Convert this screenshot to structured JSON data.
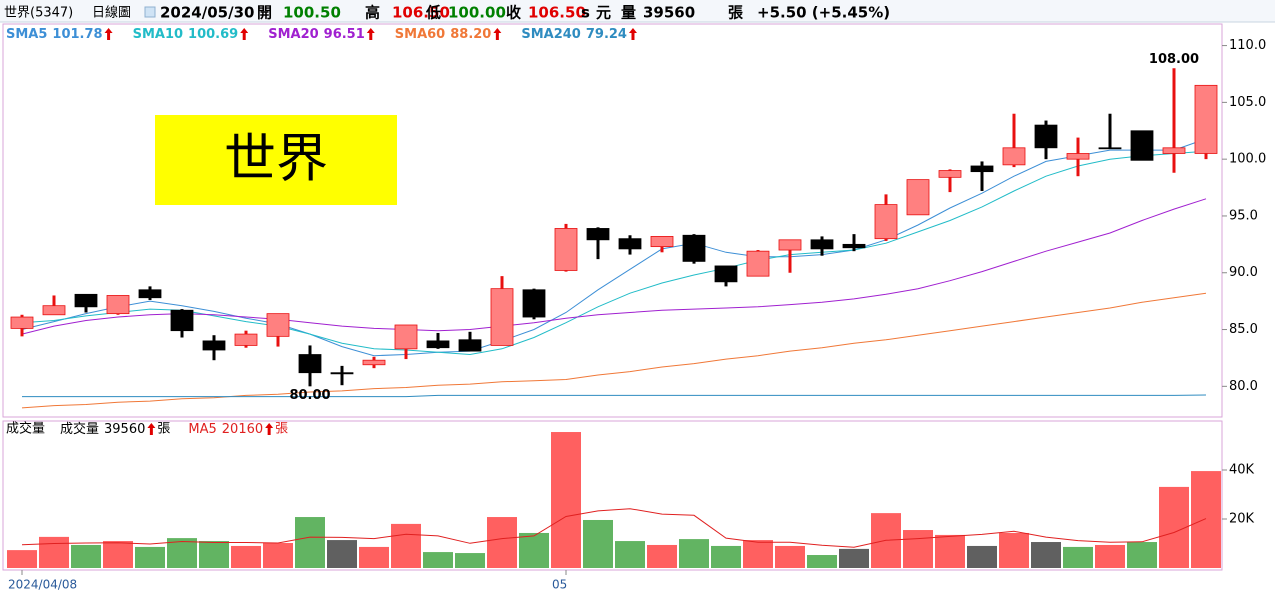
{
  "header": {
    "name": "世界(5347)",
    "view": "日線圖",
    "date": "2024/05/30",
    "open_label": "開",
    "open": "100.50",
    "high_label": "高",
    "high": "106.50",
    "low_label": "低",
    "low": "100.00",
    "close_label": "收",
    "close": "106.50",
    "s": "s",
    "currency": "元",
    "volume_label": "量",
    "volume": "39560",
    "volume_unit": "張",
    "change": "+5.50 (+5.45%)"
  },
  "chart_data": [
    {
      "type": "candlestick",
      "annotation": "世界",
      "open": [
        85.1,
        86.3,
        88.1,
        86.4,
        88.5,
        86.7,
        84.0,
        83.6,
        84.4,
        82.8,
        81.2,
        81.9,
        83.3,
        84.0,
        84.1,
        83.6,
        88.5,
        90.2,
        93.9,
        93.0,
        92.3,
        93.3,
        90.6,
        89.7,
        92.0,
        92.9,
        92.5,
        93.0,
        95.1,
        98.4,
        99.4,
        99.5,
        103.0,
        100.0,
        101.0,
        102.5,
        100.5,
        100.5
      ],
      "high": [
        86.3,
        88.0,
        88.1,
        88.0,
        88.8,
        86.8,
        84.5,
        84.9,
        86.4,
        83.6,
        81.8,
        82.6,
        85.4,
        84.7,
        84.8,
        89.7,
        88.6,
        94.3,
        94.0,
        93.3,
        93.2,
        93.4,
        90.6,
        92.0,
        92.9,
        93.2,
        93.4,
        96.9,
        98.2,
        99.1,
        99.8,
        104.0,
        103.4,
        101.9,
        104.0,
        102.5,
        108.0,
        106.5
      ],
      "low": [
        84.4,
        86.3,
        86.5,
        86.3,
        87.6,
        84.3,
        82.3,
        83.4,
        83.5,
        80.0,
        80.1,
        81.6,
        82.4,
        83.3,
        83.1,
        83.6,
        85.9,
        90.1,
        91.2,
        91.6,
        91.8,
        90.8,
        88.8,
        89.7,
        90.0,
        91.5,
        91.9,
        92.8,
        95.1,
        97.1,
        97.2,
        99.3,
        100.0,
        98.5,
        101.0,
        99.9,
        98.8,
        100.0
      ],
      "close": [
        86.1,
        87.1,
        87.0,
        88.0,
        87.8,
        84.9,
        83.2,
        84.6,
        86.4,
        81.2,
        81.1,
        82.3,
        85.4,
        83.4,
        83.1,
        88.6,
        86.1,
        93.9,
        92.9,
        92.1,
        93.2,
        91.0,
        89.2,
        91.9,
        92.9,
        92.1,
        92.2,
        96.0,
        98.2,
        99.0,
        98.9,
        101.0,
        101.0,
        100.5,
        101.0,
        99.9,
        101.0,
        106.5
      ],
      "high_labels": [
        null,
        null,
        null,
        null,
        null,
        null,
        null,
        null,
        null,
        null,
        null,
        null,
        null,
        null,
        null,
        null,
        null,
        null,
        null,
        null,
        null,
        null,
        null,
        null,
        null,
        null,
        null,
        null,
        null,
        null,
        null,
        null,
        null,
        null,
        null,
        null,
        "108.00",
        null
      ],
      "low_labels": [
        null,
        null,
        null,
        null,
        null,
        null,
        null,
        null,
        null,
        "80.00",
        null,
        null,
        null,
        null,
        null,
        null,
        null,
        null,
        null,
        null,
        null,
        null,
        null,
        null,
        null,
        null,
        null,
        null,
        null,
        null,
        null,
        null,
        null,
        null,
        null,
        null,
        null,
        null
      ],
      "up_color": "#ff8080",
      "up_edge_color": "#e81010",
      "down_color": "#000000",
      "series": [
        {
          "name": "SMA5",
          "color": "#3d8fd6",
          "legend_label": "101.78",
          "values": [
            85.0,
            85.7,
            86.4,
            87.0,
            87.5,
            87.1,
            86.6,
            86.0,
            85.5,
            84.6,
            83.5,
            82.7,
            82.8,
            83.0,
            83.1,
            84.0,
            85.0,
            86.5,
            88.5,
            90.3,
            92.1,
            92.6,
            91.8,
            91.4,
            91.4,
            91.6,
            92.0,
            92.9,
            94.2,
            95.7,
            97.0,
            98.5,
            99.8,
            100.3,
            100.8,
            100.8,
            100.8,
            101.78
          ]
        },
        {
          "name": "SMA10",
          "color": "#22bcc8",
          "legend_label": "100.69",
          "values": [
            85.6,
            85.8,
            86.2,
            86.5,
            86.8,
            86.7,
            86.2,
            85.7,
            85.3,
            84.6,
            83.8,
            83.3,
            83.2,
            83.0,
            82.8,
            83.3,
            84.3,
            85.6,
            87.0,
            88.2,
            89.1,
            89.8,
            90.4,
            91.1,
            91.6,
            91.8,
            92.0,
            92.6,
            93.6,
            94.6,
            95.8,
            97.2,
            98.5,
            99.4,
            100.0,
            100.3,
            100.5,
            100.69
          ]
        },
        {
          "name": "SMA20",
          "color": "#a020d0",
          "legend_label": "96.51",
          "values": [
            84.6,
            85.3,
            85.8,
            86.1,
            86.3,
            86.4,
            86.3,
            86.1,
            85.9,
            85.6,
            85.3,
            85.1,
            85.0,
            84.9,
            85.0,
            85.3,
            85.6,
            86.0,
            86.3,
            86.5,
            86.7,
            86.8,
            86.9,
            87.0,
            87.2,
            87.4,
            87.7,
            88.1,
            88.6,
            89.3,
            90.1,
            91.0,
            91.9,
            92.7,
            93.5,
            94.6,
            95.6,
            96.51
          ]
        },
        {
          "name": "SMA60",
          "color": "#f07838",
          "legend_label": "88.20",
          "values": [
            78.1,
            78.3,
            78.4,
            78.6,
            78.7,
            78.9,
            79.0,
            79.2,
            79.3,
            79.5,
            79.6,
            79.8,
            79.9,
            80.1,
            80.2,
            80.4,
            80.5,
            80.6,
            81.0,
            81.3,
            81.7,
            82.0,
            82.4,
            82.7,
            83.1,
            83.4,
            83.8,
            84.1,
            84.5,
            84.9,
            85.3,
            85.7,
            86.1,
            86.5,
            86.9,
            87.4,
            87.8,
            88.2
          ]
        },
        {
          "name": "SMA240",
          "color": "#2f8cc0",
          "legend_label": "79.24",
          "values": [
            79.1,
            79.1,
            79.1,
            79.1,
            79.1,
            79.1,
            79.1,
            79.1,
            79.1,
            79.1,
            79.1,
            79.1,
            79.1,
            79.2,
            79.2,
            79.2,
            79.2,
            79.2,
            79.2,
            79.2,
            79.2,
            79.2,
            79.2,
            79.2,
            79.2,
            79.2,
            79.2,
            79.2,
            79.2,
            79.2,
            79.2,
            79.2,
            79.2,
            79.2,
            79.2,
            79.2,
            79.2,
            79.24
          ]
        }
      ],
      "ylim": [
        77.3,
        111.9
      ],
      "yticks": [
        {
          "value": 80,
          "label": "80.0"
        },
        {
          "value": 85,
          "label": "85.0"
        },
        {
          "value": 90,
          "label": "90.0"
        },
        {
          "value": 95,
          "label": "95.0"
        },
        {
          "value": 100,
          "label": "100.0"
        },
        {
          "value": 105,
          "label": "105.0"
        },
        {
          "value": 110,
          "label": "110.0"
        }
      ]
    },
    {
      "type": "bar",
      "title": "成交量",
      "unit": "張",
      "categories": [
        "2024/04/08",
        null,
        null,
        null,
        null,
        null,
        null,
        null,
        null,
        null,
        null,
        null,
        null,
        null,
        null,
        null,
        null,
        "05",
        null,
        null,
        null,
        null,
        null,
        null,
        null,
        null,
        null,
        null,
        null,
        null,
        null,
        null,
        null,
        null,
        null,
        null,
        null,
        null
      ],
      "series": [
        {
          "name": "成交量",
          "values": [
            7300,
            12700,
            9400,
            11000,
            8600,
            12200,
            11000,
            9000,
            10200,
            20800,
            11400,
            8600,
            18000,
            6500,
            6100,
            20800,
            14300,
            55500,
            19600,
            11000,
            9400,
            11800,
            9000,
            11400,
            9000,
            5300,
            7800,
            22400,
            15500,
            13500,
            9000,
            14300,
            10600,
            8600,
            9400,
            10600,
            33100,
            39560
          ],
          "colors": [
            "#ff6060",
            "#ff6060",
            "#62b462",
            "#ff6060",
            "#62b462",
            "#62b462",
            "#62b462",
            "#ff6060",
            "#ff6060",
            "#62b462",
            "#606060",
            "#ff6060",
            "#ff6060",
            "#62b462",
            "#62b462",
            "#ff6060",
            "#62b462",
            "#ff6060",
            "#62b462",
            "#62b462",
            "#ff6060",
            "#62b462",
            "#62b462",
            "#ff6060",
            "#ff6060",
            "#62b462",
            "#606060",
            "#ff6060",
            "#ff6060",
            "#ff6060",
            "#606060",
            "#ff6060",
            "#606060",
            "#62b462",
            "#ff6060",
            "#62b462",
            "#ff6060",
            "#ff6060"
          ]
        },
        {
          "name": "MA5",
          "type": "line",
          "color": "#e02020",
          "values": [
            9500,
            10000,
            10200,
            10300,
            9800,
            10800,
            10400,
            10400,
            10200,
            12600,
            12500,
            12000,
            13800,
            13100,
            10100,
            12000,
            13100,
            21000,
            23300,
            24200,
            22000,
            21500,
            12200,
            10500,
            10500,
            9300,
            8500,
            11300,
            12000,
            12900,
            13700,
            15000,
            12600,
            11200,
            10500,
            10700,
            14500,
            20160
          ]
        }
      ],
      "ylim": [
        0,
        60000
      ],
      "yticks": [
        {
          "value": 20000,
          "label": "20K"
        },
        {
          "value": 40000,
          "label": "40K"
        }
      ]
    }
  ]
}
